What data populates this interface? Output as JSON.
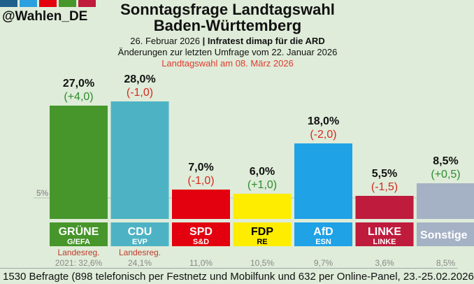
{
  "header": {
    "handle": "@Wahlen_DE",
    "logo_colors": [
      "#1f5f8b",
      "#2aa0e0",
      "#e3000f",
      "#46962b",
      "#be1b3d"
    ],
    "title_line1": "Sonntagsfrage Landtagswahl",
    "title_line2": "Baden-Württemberg",
    "date": "26. Februar 2026",
    "separator": "|",
    "institute": "Infratest dimap für die ARD",
    "changes_note": "Änderungen zur letzten Umfrage vom 22. Januar 2026",
    "election_note": "Landtagswahl am 08. März 2026"
  },
  "chart_data": {
    "type": "bar",
    "threshold_label": "5%",
    "threshold": 5,
    "categories": [
      "GRÜNE",
      "CDU",
      "SPD",
      "FDP",
      "AfD",
      "LINKE",
      "Sonstige"
    ],
    "subgroups": [
      "G/EFA",
      "EVP",
      "S&D",
      "RE",
      "ESN",
      "LINKE",
      ""
    ],
    "values": [
      27.0,
      28.0,
      7.0,
      6.0,
      18.0,
      5.5,
      8.5
    ],
    "value_labels": [
      "27,0%",
      "28,0%",
      "7,0%",
      "6,0%",
      "18,0%",
      "5,5%",
      "8,5%"
    ],
    "changes": [
      "(+4,0)",
      "(-1,0)",
      "(-1,0)",
      "(+1,0)",
      "(-2,0)",
      "(-1,5)",
      "(+0,5)"
    ],
    "colors": [
      "#46962b",
      "#4db3c4",
      "#e3000f",
      "#ffed00",
      "#1fa2e6",
      "#be1b3d",
      "#a5b1c4"
    ],
    "label_text_colors": [
      "#ffffff",
      "#ffffff",
      "#ffffff",
      "#000000",
      "#ffffff",
      "#ffffff",
      "#ffffff"
    ],
    "government_note": [
      "Landesreg.",
      "Landesreg.",
      "",
      "",
      "",
      "",
      ""
    ],
    "previous_results": [
      "2021: 32,6%",
      "24,1%",
      "11,0%",
      "10,5%",
      "9,7%",
      "3,6%",
      "8,5%"
    ],
    "positive_color": "#2e8b2e",
    "negative_color": "#d42a1f"
  },
  "footer": {
    "text": "1530 Befragte (898 telefonisch per Festnetz und Mobilfunk und 632 per Online-Panel, 23.-25.02.2026"
  }
}
